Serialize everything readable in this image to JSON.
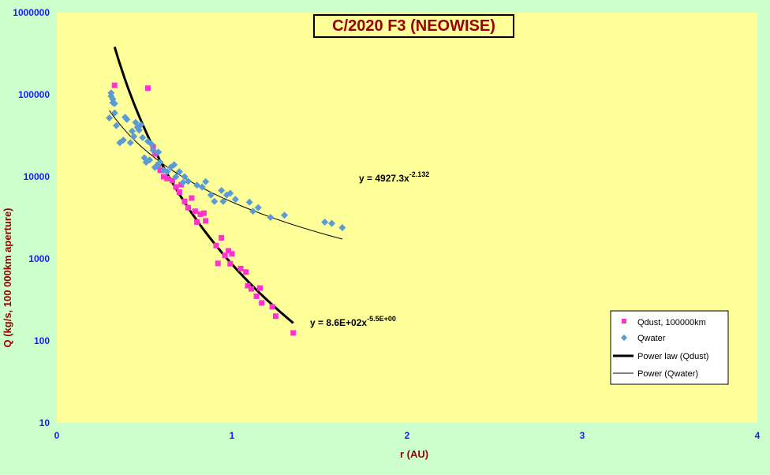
{
  "colors": {
    "background": "#ccffcc",
    "plot_area": "#ffff99",
    "dust_marker": "#ff33cc",
    "water_marker": "#5b9bd5",
    "axis_text": "#1a1aff",
    "title_text": "#990000"
  },
  "chart_data": {
    "type": "scatter",
    "title": "C/2020 F3 (NEOWISE)",
    "xlabel": "r (AU)",
    "ylabel": "Q (kg/s, 100 000km aperture)",
    "xlim": [
      0,
      4
    ],
    "ylim": [
      10,
      1000000
    ],
    "yscale": "log",
    "grid": false,
    "legend_position": "bottom-right",
    "x_ticks": [
      "0",
      "1",
      "2",
      "3",
      "4"
    ],
    "y_ticks": [
      "10",
      "100",
      "1000",
      "10000",
      "100000",
      "1000000"
    ],
    "series": [
      {
        "name": "Qdust, 100000km",
        "marker": "square",
        "color": "#ff33cc",
        "points": [
          [
            0.33,
            130000
          ],
          [
            0.52,
            120000
          ],
          [
            0.55,
            23000
          ],
          [
            0.56,
            19000
          ],
          [
            0.58,
            14000
          ],
          [
            0.59,
            12000
          ],
          [
            0.61,
            10000
          ],
          [
            0.63,
            9500
          ],
          [
            0.66,
            9000
          ],
          [
            0.68,
            7500
          ],
          [
            0.7,
            6500
          ],
          [
            0.71,
            8000
          ],
          [
            0.73,
            5000
          ],
          [
            0.75,
            4200
          ],
          [
            0.77,
            5500
          ],
          [
            0.79,
            3800
          ],
          [
            0.8,
            2800
          ],
          [
            0.82,
            3500
          ],
          [
            0.84,
            3600
          ],
          [
            0.85,
            2900
          ],
          [
            0.91,
            1450
          ],
          [
            0.92,
            880
          ],
          [
            0.94,
            1800
          ],
          [
            0.96,
            1100
          ],
          [
            0.98,
            1250
          ],
          [
            0.99,
            870
          ],
          [
            1.0,
            1150
          ],
          [
            1.05,
            760
          ],
          [
            1.08,
            690
          ],
          [
            1.09,
            470
          ],
          [
            1.11,
            430
          ],
          [
            1.14,
            350
          ],
          [
            1.16,
            440
          ],
          [
            1.17,
            290
          ],
          [
            1.23,
            260
          ],
          [
            1.25,
            200
          ],
          [
            1.35,
            125
          ]
        ]
      },
      {
        "name": "Qwater",
        "marker": "diamond",
        "color": "#5b9bd5",
        "points": [
          [
            0.3,
            52000
          ],
          [
            0.31,
            105000
          ],
          [
            0.31,
            96000
          ],
          [
            0.32,
            88000
          ],
          [
            0.32,
            80000
          ],
          [
            0.33,
            78000
          ],
          [
            0.33,
            60000
          ],
          [
            0.34,
            42000
          ],
          [
            0.36,
            26000
          ],
          [
            0.38,
            28000
          ],
          [
            0.39,
            53000
          ],
          [
            0.4,
            50000
          ],
          [
            0.42,
            26000
          ],
          [
            0.43,
            36000
          ],
          [
            0.44,
            31000
          ],
          [
            0.45,
            46000
          ],
          [
            0.46,
            40000
          ],
          [
            0.47,
            37000
          ],
          [
            0.48,
            43000
          ],
          [
            0.49,
            30000
          ],
          [
            0.5,
            17000
          ],
          [
            0.51,
            15000
          ],
          [
            0.52,
            27000
          ],
          [
            0.53,
            16000
          ],
          [
            0.54,
            25000
          ],
          [
            0.55,
            21000
          ],
          [
            0.56,
            13000
          ],
          [
            0.57,
            13500
          ],
          [
            0.58,
            20000
          ],
          [
            0.59,
            15000
          ],
          [
            0.61,
            12000
          ],
          [
            0.63,
            11500
          ],
          [
            0.65,
            13000
          ],
          [
            0.67,
            14000
          ],
          [
            0.68,
            10000
          ],
          [
            0.7,
            11500
          ],
          [
            0.72,
            8500
          ],
          [
            0.73,
            10000
          ],
          [
            0.75,
            8800
          ],
          [
            0.8,
            7900
          ],
          [
            0.83,
            7500
          ],
          [
            0.85,
            8700
          ],
          [
            0.88,
            6000
          ],
          [
            0.9,
            5000
          ],
          [
            0.94,
            6800
          ],
          [
            0.95,
            5000
          ],
          [
            0.97,
            6000
          ],
          [
            0.99,
            6300
          ],
          [
            1.02,
            5300
          ],
          [
            1.1,
            4900
          ],
          [
            1.12,
            3800
          ],
          [
            1.15,
            4200
          ],
          [
            1.22,
            3200
          ],
          [
            1.3,
            3400
          ],
          [
            1.53,
            2800
          ],
          [
            1.57,
            2700
          ],
          [
            1.63,
            2400
          ]
        ]
      },
      {
        "name": "Power law (Qdust)",
        "type": "line",
        "color": "#000000",
        "width": "thick",
        "equation": "y = 8.6E+02x",
        "exponent": "-5.5E+00",
        "coef": 860,
        "power": -5.5,
        "x_range": [
          0.33,
          1.35
        ]
      },
      {
        "name": "Power (Qwater)",
        "type": "line",
        "color": "#000000",
        "width": "thin",
        "equation": "y = 4927.3x",
        "exponent": "-2.132",
        "coef": 4927.3,
        "power": -2.132,
        "x_range": [
          0.3,
          1.63
        ]
      }
    ]
  }
}
